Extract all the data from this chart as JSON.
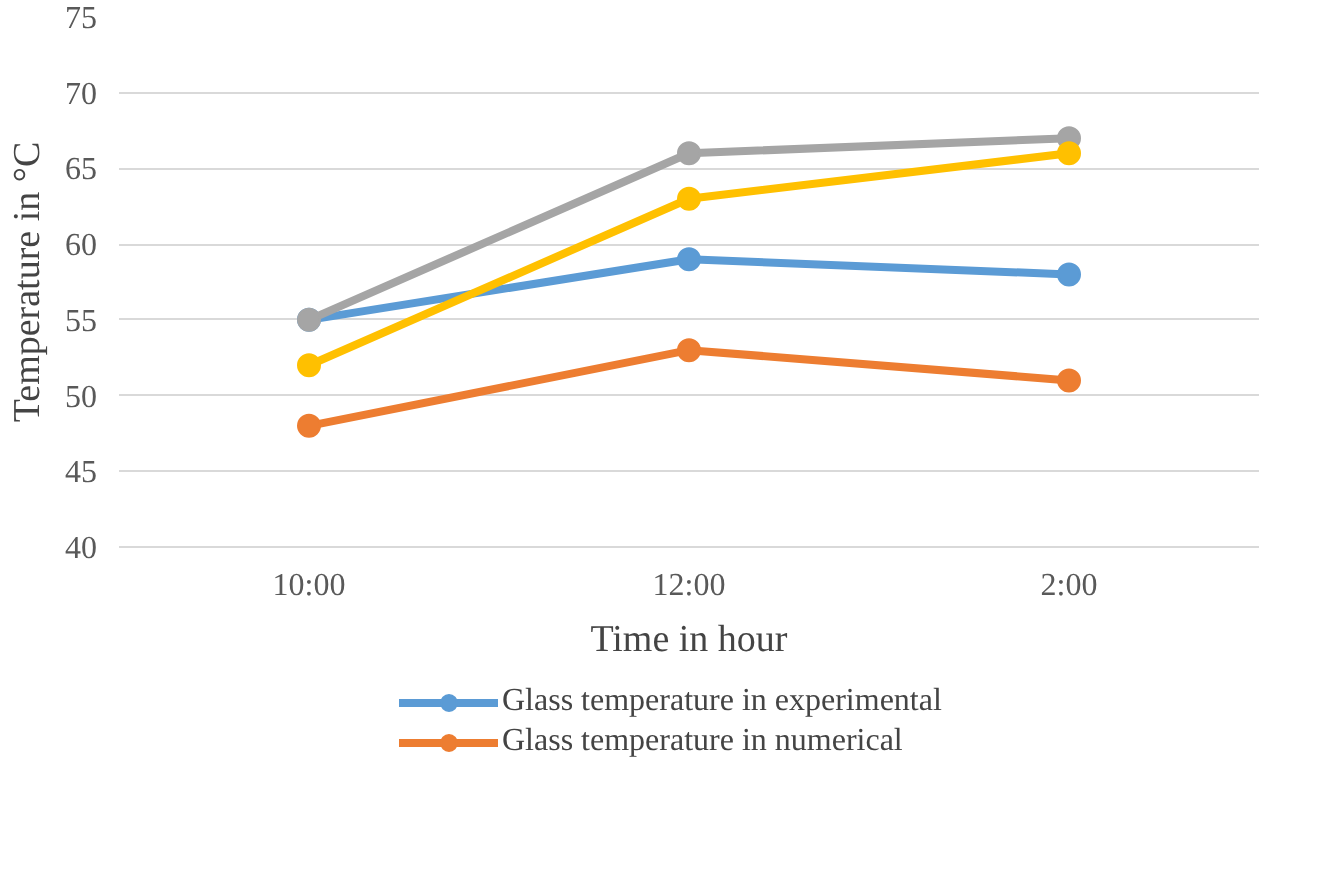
{
  "chart_data": {
    "type": "line",
    "xlabel": "Time in hour",
    "ylabel": "Temperature in °C",
    "categories": [
      "10:00",
      "12:00",
      "2:00"
    ],
    "series": [
      {
        "name": "Glass temperature in experimental",
        "color": "#5b9bd5",
        "values": [
          55,
          59,
          58
        ]
      },
      {
        "name": "Glass temperature in numerical",
        "color": "#ed7d31",
        "values": [
          48,
          53,
          51
        ]
      },
      {
        "color": "#a5a5a5",
        "values": [
          55,
          66,
          67
        ]
      },
      {
        "color": "#ffc000",
        "values": [
          52,
          63,
          66
        ]
      }
    ],
    "ylim": [
      40,
      75
    ],
    "yticks": [
      40,
      45,
      50,
      55,
      60,
      65,
      70,
      75
    ],
    "grid": "y",
    "legend": "bottom",
    "marker": "circle",
    "line_style": "solid"
  }
}
